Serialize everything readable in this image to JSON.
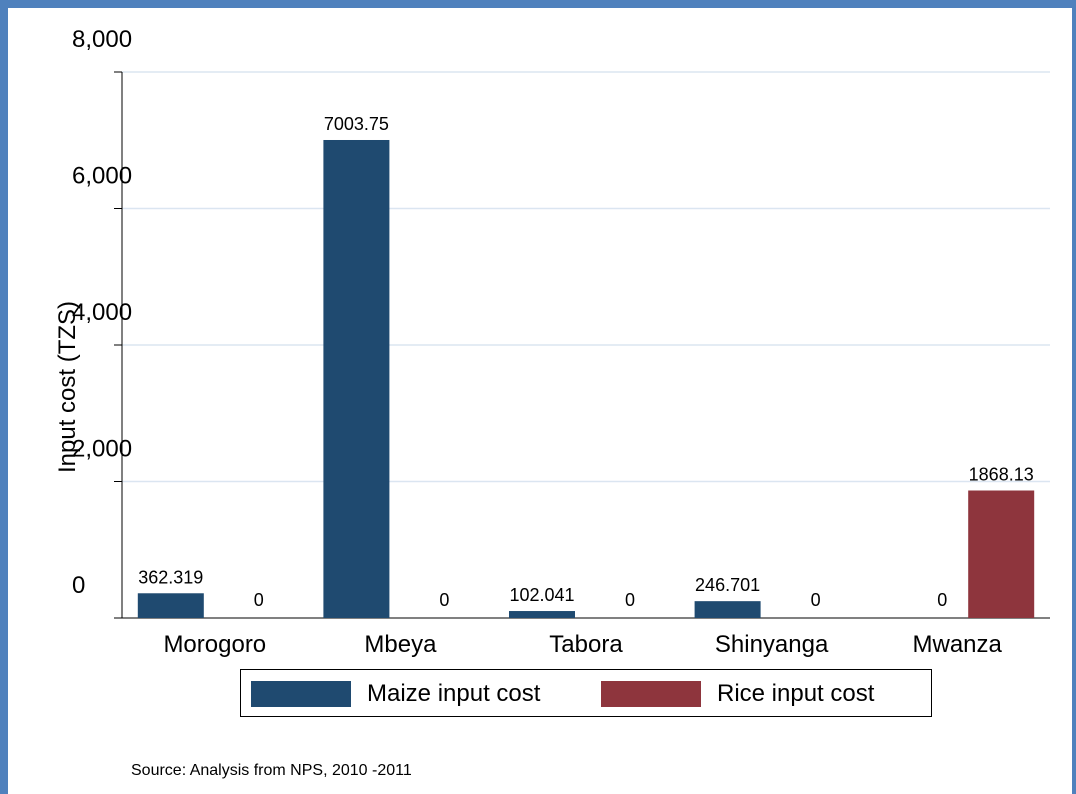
{
  "chart_data": {
    "type": "bar",
    "title": "",
    "xlabel": "",
    "ylabel": "Input cost (TZS)",
    "ylim": [
      0,
      8000
    ],
    "yticks": [
      0,
      2000,
      4000,
      6000,
      8000
    ],
    "ytick_labels": [
      "0",
      "2,000",
      "4,000",
      "6,000",
      "8,000"
    ],
    "categories": [
      "Morogoro",
      "Mbeya",
      "Tabora",
      "Shinyanga",
      "Mwanza"
    ],
    "series": [
      {
        "name": "Maize input cost",
        "color": "#1f4a70",
        "values": [
          362.319,
          7003.75,
          102.041,
          246.701,
          0
        ],
        "labels": [
          "362.319",
          "7003.75",
          "102.041",
          "246.701",
          ""
        ]
      },
      {
        "name": "Rice input cost",
        "color": "#8e353d",
        "values": [
          0,
          0,
          0,
          0,
          1868.13
        ],
        "labels": [
          "0",
          "0",
          "0",
          "0",
          "1868.13"
        ]
      }
    ],
    "extra_labels": [
      {
        "category": "Mwanza",
        "series": "Maize input cost",
        "text": "0"
      }
    ],
    "grid": true,
    "legend_position": "bottom"
  },
  "source_note": "Source: Analysis from NPS, 2010 -2011",
  "colors": {
    "frame": "#4f81bd",
    "grid": "#dbe5f1"
  }
}
